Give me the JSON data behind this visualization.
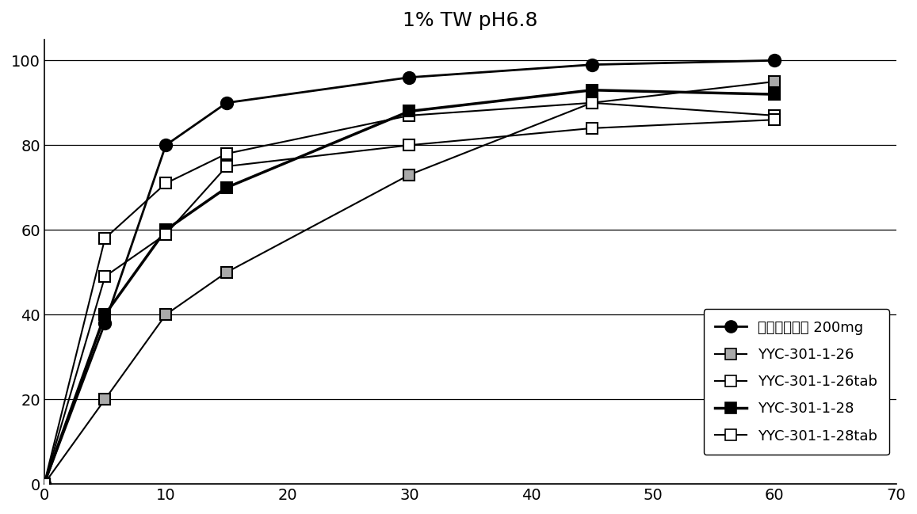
{
  "title": "1% TW pH6.8",
  "xlim": [
    0,
    70
  ],
  "ylim": [
    0,
    105
  ],
  "xticks": [
    0,
    10,
    20,
    30,
    40,
    50,
    60,
    70
  ],
  "yticks": [
    0,
    20,
    40,
    60,
    80,
    100
  ],
  "series": [
    {
      "label": "塞来昔布胶囊 200mg",
      "x": [
        0,
        5,
        10,
        15,
        30,
        45,
        60
      ],
      "y": [
        0,
        38,
        80,
        90,
        96,
        99,
        100
      ],
      "color": "#000000",
      "marker": "o",
      "marker_fill": "#000000",
      "linewidth": 2.0,
      "markersize": 11
    },
    {
      "label": "YYC-301-1-26",
      "x": [
        0,
        5,
        10,
        15,
        30,
        45,
        60
      ],
      "y": [
        0,
        20,
        40,
        50,
        73,
        90,
        95
      ],
      "color": "#000000",
      "marker": "s",
      "marker_fill": "#aaaaaa",
      "linewidth": 1.5,
      "markersize": 10
    },
    {
      "label": "YYC-301-1-26tab",
      "x": [
        0,
        5,
        10,
        15,
        30,
        45,
        60
      ],
      "y": [
        0,
        58,
        71,
        78,
        87,
        90,
        87
      ],
      "color": "#000000",
      "marker": "s",
      "marker_fill": "#ffffff",
      "linewidth": 1.5,
      "markersize": 10
    },
    {
      "label": "YYC-301-1-28",
      "x": [
        0,
        5,
        10,
        15,
        30,
        45,
        60
      ],
      "y": [
        0,
        40,
        60,
        70,
        88,
        93,
        92
      ],
      "color": "#000000",
      "marker": "s",
      "marker_fill": "#000000",
      "linewidth": 2.5,
      "markersize": 10
    },
    {
      "label": "YYC-301-1-28tab",
      "x": [
        0,
        5,
        10,
        15,
        30,
        45,
        60
      ],
      "y": [
        0,
        49,
        59,
        75,
        80,
        84,
        86
      ],
      "color": "#000000",
      "marker": "s",
      "marker_fill": "#ffffff",
      "linewidth": 1.5,
      "markersize": 10
    }
  ],
  "background_color": "#ffffff",
  "title_fontsize": 18
}
